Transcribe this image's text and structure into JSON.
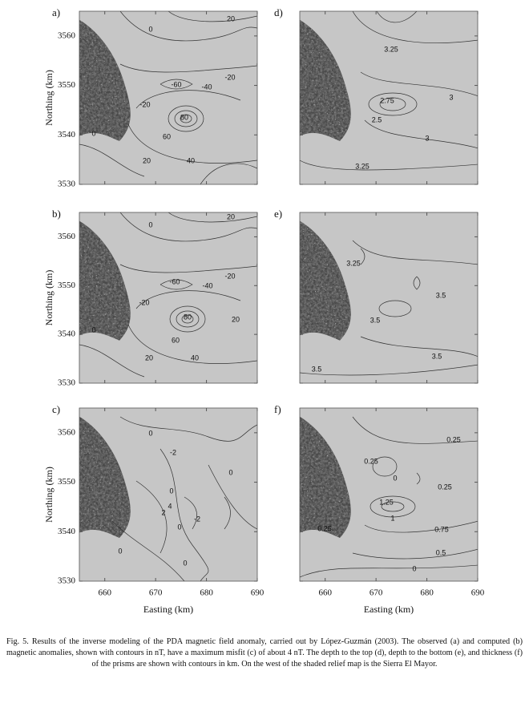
{
  "figure": {
    "xlim": [
      655,
      690
    ],
    "ylim": [
      3530,
      3565
    ],
    "xticks": [
      660,
      670,
      680,
      690
    ],
    "yticks": [
      3530,
      3540,
      3550,
      3560
    ],
    "xlabel": "Easting (km)",
    "ylabel": "Northing (km)",
    "panels": [
      {
        "label": "a)",
        "contour_labels": [
          "0",
          "20",
          "-60",
          "-40",
          "-20",
          "-20",
          "80",
          "60",
          "0",
          "20",
          "40"
        ]
      },
      {
        "label": "b)",
        "contour_labels": [
          "20",
          "0",
          "-60",
          "-40",
          "-20",
          "-20",
          "80",
          "20",
          "60",
          "0",
          "20",
          "40"
        ]
      },
      {
        "label": "c)",
        "contour_labels": [
          "0",
          "-2",
          "0",
          "0",
          "2",
          "4",
          "-2",
          "0",
          "0",
          "0"
        ]
      },
      {
        "label": "d)",
        "contour_labels": [
          "3.25",
          "2.75",
          "3",
          "2.5",
          "3",
          "3.25"
        ]
      },
      {
        "label": "e)",
        "contour_labels": [
          "3.25",
          "3.5",
          "3.5",
          "3.5",
          "3.5"
        ]
      },
      {
        "label": "f)",
        "contour_labels": [
          "0.25",
          "0.25",
          "0",
          "0.25",
          "1.25",
          "1",
          "0.25",
          "0.75",
          "0.5",
          "0"
        ]
      }
    ],
    "caption": "Fig. 5. Results of the inverse modeling of the PDA magnetic field anomaly, carried out by López-Guzmán (2003). The observed (a) and computed (b) magnetic anomalies, shown with contours in nT, have a maximum misfit (c) of about 4 nT. The depth to the top (d), depth to the bottom (e), and thickness (f) of the prisms are shown with contours in km. On the west of the shaded relief map is the Sierra El Mayor."
  }
}
